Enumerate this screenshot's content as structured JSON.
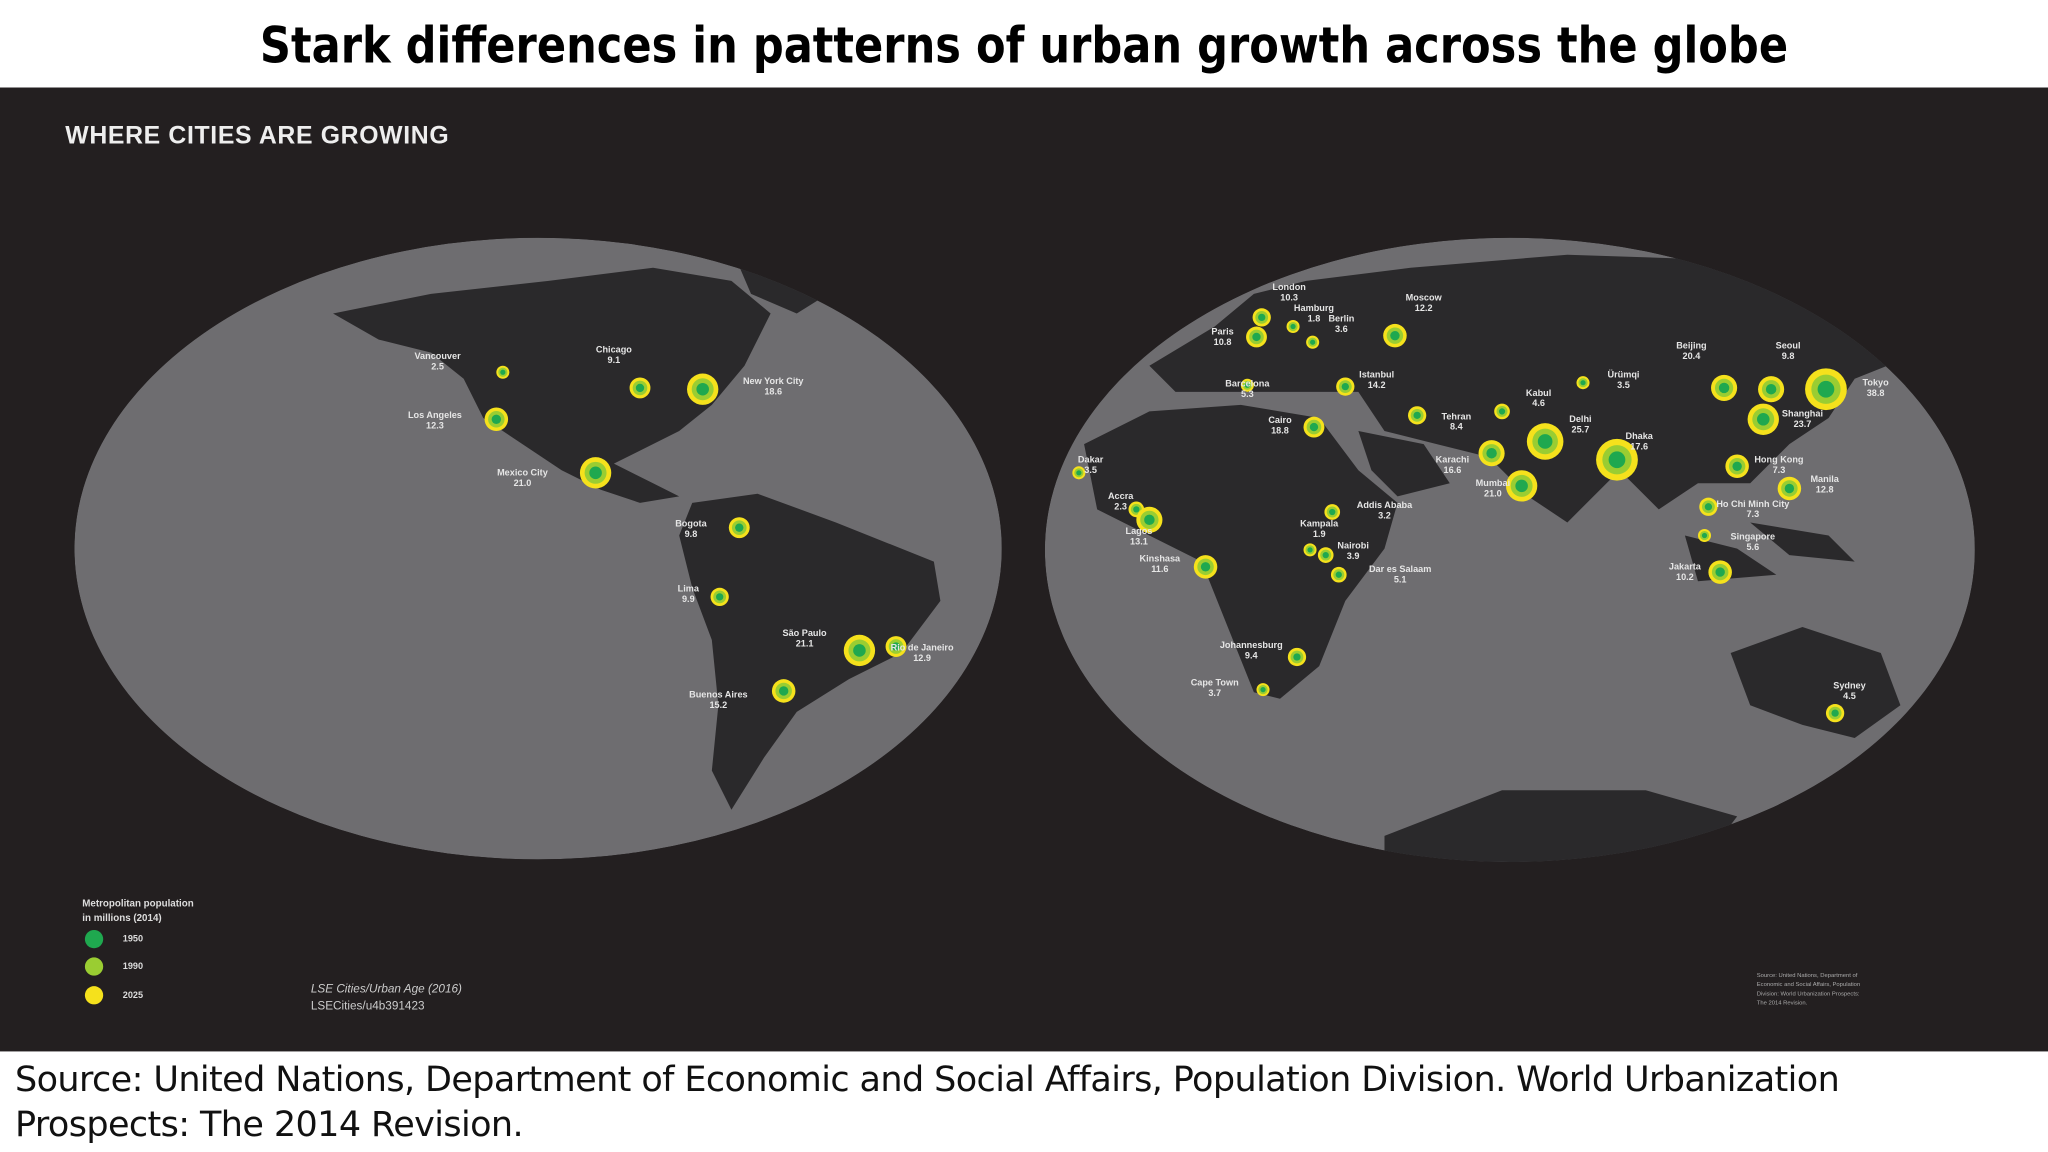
{
  "title": "Stark differences in patterns of urban growth across the globe",
  "map": {
    "heading": "WHERE CITIES ARE GROWING",
    "cities": [
      {
        "name": "Vancouver",
        "value": "2.5"
      },
      {
        "name": "Chicago",
        "value": "9.1"
      },
      {
        "name": "New York City",
        "value": "18.6"
      },
      {
        "name": "Los Angeles",
        "value": "12.3"
      },
      {
        "name": "Mexico City",
        "value": "21.0"
      },
      {
        "name": "Bogota",
        "value": "9.8"
      },
      {
        "name": "Lima",
        "value": "9.9"
      },
      {
        "name": "São Paulo",
        "value": "21.1"
      },
      {
        "name": "Rio de Janeiro",
        "value": "12.9"
      },
      {
        "name": "Buenos Aires",
        "value": "15.2"
      },
      {
        "name": "London",
        "value": "10.3"
      },
      {
        "name": "Hamburg",
        "value": "1.8"
      },
      {
        "name": "Berlin",
        "value": "3.6"
      },
      {
        "name": "Moscow",
        "value": "12.2"
      },
      {
        "name": "Paris",
        "value": "10.8"
      },
      {
        "name": "Barcelona",
        "value": "5.3"
      },
      {
        "name": "Istanbul",
        "value": "14.2"
      },
      {
        "name": "Cairo",
        "value": "18.8"
      },
      {
        "name": "Tehran",
        "value": "8.4"
      },
      {
        "name": "Kabul",
        "value": "4.6"
      },
      {
        "name": "Ürümqi",
        "value": "3.5"
      },
      {
        "name": "Beijing",
        "value": "20.4"
      },
      {
        "name": "Seoul",
        "value": "9.8"
      },
      {
        "name": "Tokyo",
        "value": "38.8"
      },
      {
        "name": "Karachi",
        "value": "16.6"
      },
      {
        "name": "Delhi",
        "value": "25.7"
      },
      {
        "name": "Dhaka",
        "value": "17.6"
      },
      {
        "name": "Shanghai",
        "value": "23.7"
      },
      {
        "name": "Mumbai",
        "value": "21.0"
      },
      {
        "name": "Hong Kong",
        "value": "7.3"
      },
      {
        "name": "Manila",
        "value": "12.8"
      },
      {
        "name": "Ho Chi Minh City",
        "value": "7.3"
      },
      {
        "name": "Singapore",
        "value": "5.6"
      },
      {
        "name": "Jakarta",
        "value": "10.2"
      },
      {
        "name": "Dakar",
        "value": "3.5"
      },
      {
        "name": "Accra",
        "value": "2.3"
      },
      {
        "name": "Lagos",
        "value": "13.1"
      },
      {
        "name": "Kinshasa",
        "value": "11.6"
      },
      {
        "name": "Addis Ababa",
        "value": "3.2"
      },
      {
        "name": "Kampala",
        "value": "1.9"
      },
      {
        "name": "Nairobi",
        "value": "3.9"
      },
      {
        "name": "Dar es Salaam",
        "value": "5.1"
      },
      {
        "name": "Johannesburg",
        "value": "9.4"
      },
      {
        "name": "Cape Town",
        "value": "3.7"
      },
      {
        "name": "Sydney",
        "value": "4.5"
      }
    ],
    "legend": {
      "title": [
        "Metropolitan population",
        "in millions (2014)"
      ],
      "items": [
        "1950",
        "1990",
        "2025"
      ]
    },
    "credits": [
      "LSE Cities/Urban Age (2016)",
      "LSECities/u4b391423"
    ],
    "map_source": [
      "Source: United Nations, Department of",
      "Economic and Social Affairs, Population",
      "Division: World Urbanization Prospects:",
      "The 2014 Revision."
    ]
  },
  "source": "Source: United Nations, Department of Economic and Social Affairs, Population Division. World Urbanization Prospects: The 2014 Revision."
}
